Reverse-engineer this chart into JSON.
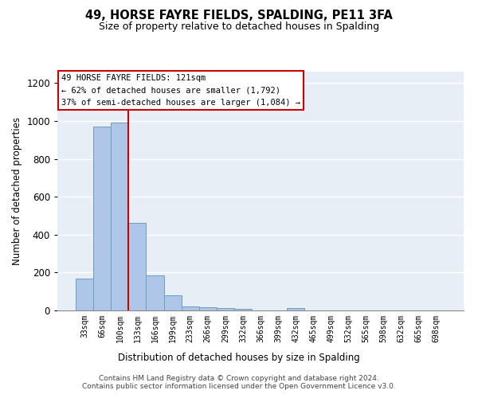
{
  "title": "49, HORSE FAYRE FIELDS, SPALDING, PE11 3FA",
  "subtitle": "Size of property relative to detached houses in Spalding",
  "xlabel": "Distribution of detached houses by size in Spalding",
  "ylabel": "Number of detached properties",
  "categories": [
    "33sqm",
    "66sqm",
    "100sqm",
    "133sqm",
    "166sqm",
    "199sqm",
    "233sqm",
    "266sqm",
    "299sqm",
    "332sqm",
    "366sqm",
    "399sqm",
    "432sqm",
    "465sqm",
    "499sqm",
    "532sqm",
    "565sqm",
    "598sqm",
    "632sqm",
    "665sqm",
    "698sqm"
  ],
  "values": [
    170,
    970,
    990,
    460,
    185,
    80,
    22,
    17,
    11,
    8,
    0,
    0,
    12,
    0,
    0,
    0,
    0,
    0,
    0,
    0,
    0
  ],
  "bar_color": "#aec6e8",
  "bar_edge_color": "#6a9ec0",
  "vline_color": "#cc0000",
  "vline_x_index": 2.5,
  "annotation_text": "49 HORSE FAYRE FIELDS: 121sqm\n← 62% of detached houses are smaller (1,792)\n37% of semi-detached houses are larger (1,084) →",
  "annotation_box_color": "#ffffff",
  "annotation_box_edge": "#cc0000",
  "ylim": [
    0,
    1260
  ],
  "yticks": [
    0,
    200,
    400,
    600,
    800,
    1000,
    1200
  ],
  "footer_text": "Contains HM Land Registry data © Crown copyright and database right 2024.\nContains public sector information licensed under the Open Government Licence v3.0.",
  "background_color": "#e8eef5"
}
